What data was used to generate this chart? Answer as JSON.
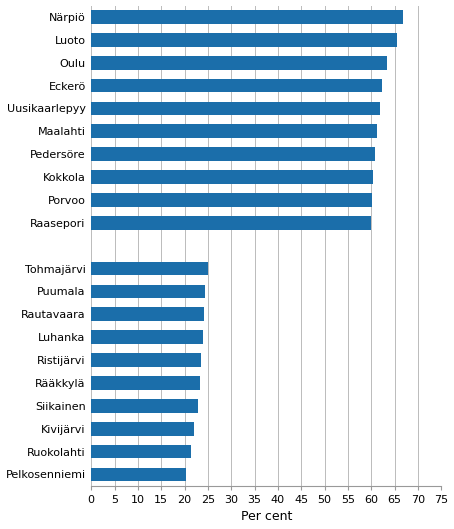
{
  "categories": [
    "Pelkosenniemi",
    "Ruokolahti",
    "Kivijärvi",
    "Siikainen",
    "Rääkkylä",
    "Ristijärvi",
    "Luhanka",
    "Rautavaara",
    "Puumala",
    "Tohmajärvi",
    "",
    "Raasepori",
    "Porvoo",
    "Kokkola",
    "Pedersöre",
    "Maalahti",
    "Uusikaarlepyy",
    "Eckerö",
    "Oulu",
    "Luoto",
    "Närpiö"
  ],
  "values": [
    20.4,
    21.3,
    22.0,
    22.8,
    23.4,
    23.6,
    23.9,
    24.1,
    24.4,
    25.0,
    0,
    60.0,
    60.2,
    60.4,
    60.8,
    61.2,
    61.8,
    62.2,
    63.3,
    65.4,
    66.8
  ],
  "bar_color": "#1b6eaa",
  "xlabel": "Per cent",
  "xlim": [
    0,
    75
  ],
  "xticks": [
    0,
    5,
    10,
    15,
    20,
    25,
    30,
    35,
    40,
    45,
    50,
    55,
    60,
    65,
    70,
    75
  ],
  "background_color": "#ffffff",
  "grid_color": "#bbbbbb",
  "bar_height": 0.6,
  "label_fontsize": 8.0,
  "xlabel_fontsize": 9.0
}
